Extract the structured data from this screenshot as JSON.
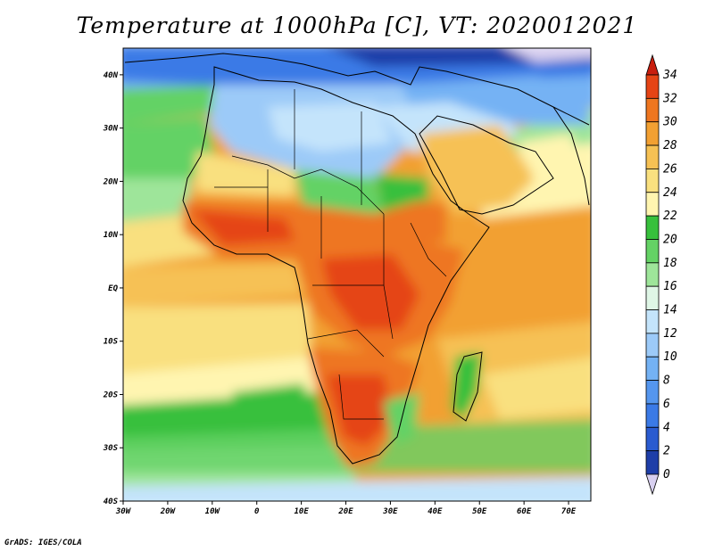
{
  "title": "Temperature at 1000hPa [C], VT: 2020012021",
  "credit": "GrADS: IGES/COLA",
  "map": {
    "lat_ticks": [
      {
        "label": "40N",
        "value": 40
      },
      {
        "label": "30N",
        "value": 30
      },
      {
        "label": "20N",
        "value": 20
      },
      {
        "label": "10N",
        "value": 10
      },
      {
        "label": "EQ",
        "value": 0
      },
      {
        "label": "10S",
        "value": -10
      },
      {
        "label": "20S",
        "value": -20
      },
      {
        "label": "30S",
        "value": -30
      },
      {
        "label": "40S",
        "value": -40
      }
    ],
    "lon_ticks": [
      {
        "label": "30W",
        "value": -30
      },
      {
        "label": "20W",
        "value": -20
      },
      {
        "label": "10W",
        "value": -10
      },
      {
        "label": "0",
        "value": 0
      },
      {
        "label": "10E",
        "value": 10
      },
      {
        "label": "20E",
        "value": 20
      },
      {
        "label": "30E",
        "value": 30
      },
      {
        "label": "40E",
        "value": 40
      },
      {
        "label": "50E",
        "value": 50
      },
      {
        "label": "60E",
        "value": 60
      },
      {
        "label": "70E",
        "value": 70
      }
    ],
    "lat_range": [
      -40,
      45
    ],
    "lon_range": [
      -30,
      75
    ]
  },
  "colorbar": {
    "levels": [
      {
        "label": "0",
        "color": "#0c1f7a"
      },
      {
        "label": "2",
        "color": "#1e3ea8"
      },
      {
        "label": "4",
        "color": "#2a5bd0"
      },
      {
        "label": "6",
        "color": "#3b7ae6"
      },
      {
        "label": "8",
        "color": "#5596ee"
      },
      {
        "label": "10",
        "color": "#74b2f4"
      },
      {
        "label": "12",
        "color": "#9ccaf8"
      },
      {
        "label": "14",
        "color": "#c4e4fb"
      },
      {
        "label": "16",
        "color": "#dff6e6"
      },
      {
        "label": "18",
        "color": "#9ee59a"
      },
      {
        "label": "20",
        "color": "#64d265"
      },
      {
        "label": "22",
        "color": "#37c03c"
      },
      {
        "label": "24",
        "color": "#fff5b0"
      },
      {
        "label": "26",
        "color": "#f9e07f"
      },
      {
        "label": "28",
        "color": "#f6c154"
      },
      {
        "label": "30",
        "color": "#f2a032"
      },
      {
        "label": "32",
        "color": "#ee7620"
      },
      {
        "label": "34",
        "color": "#e54415"
      }
    ],
    "below_color": "#d8d0f0",
    "above_color": "#c81e0e"
  }
}
